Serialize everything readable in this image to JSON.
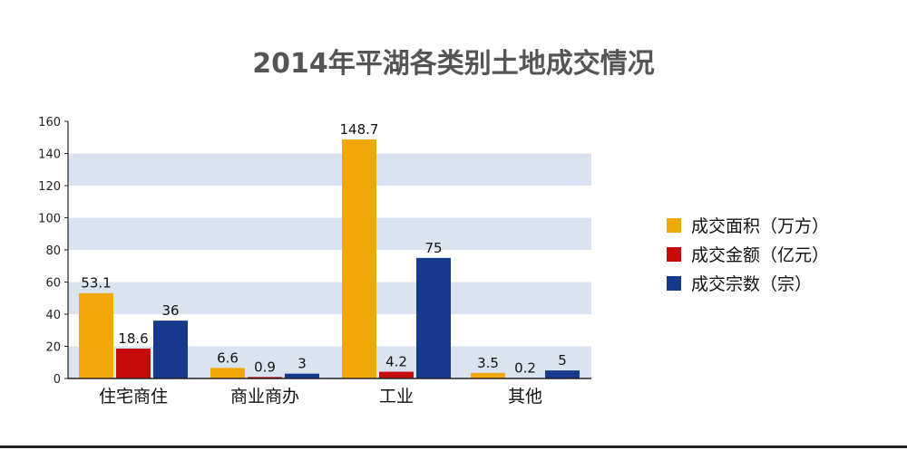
{
  "chart_data": {
    "type": "bar",
    "title": "2014年平湖各类别土地成交情况",
    "categories": [
      "住宅商住",
      "商业商办",
      "工业",
      "其他"
    ],
    "series": [
      {
        "name": "成交面积（万方）",
        "color": "#F0A808",
        "values": [
          53.1,
          6.6,
          148.7,
          3.5
        ],
        "labels": [
          "53.1",
          "6.6",
          "148.7",
          "3.5"
        ]
      },
      {
        "name": "成交金额（亿元）",
        "color": "#C40A0A",
        "values": [
          18.6,
          0.9,
          4.2,
          0.2
        ],
        "labels": [
          "18.6",
          "0.9",
          "4.2",
          "0.2"
        ]
      },
      {
        "name": "成交宗数（宗）",
        "color": "#173A8C",
        "values": [
          36,
          3,
          75,
          5
        ],
        "labels": [
          "36",
          "3",
          "75",
          "5"
        ]
      }
    ],
    "yticks": [
      "0",
      "20",
      "40",
      "60",
      "80",
      "100",
      "120",
      "140",
      "160"
    ],
    "ylim": [
      0,
      160
    ],
    "grid": "alternating horizontal bands",
    "band_color": "#D9E4F0",
    "legend_position": "right"
  }
}
